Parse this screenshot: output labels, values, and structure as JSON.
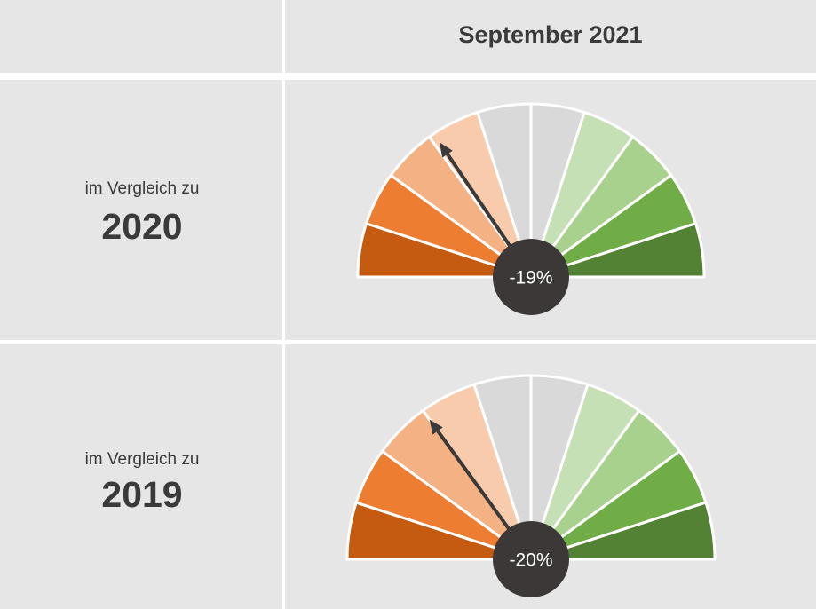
{
  "header": {
    "title": "September 2021"
  },
  "gauge": {
    "range": [
      -50,
      50
    ],
    "segment_colors": [
      "#c55a11",
      "#ed7d31",
      "#f4b183",
      "#f8cbad",
      "#d9d9d9",
      "#d9d9d9",
      "#c5e0b4",
      "#a9d18e",
      "#70ad47",
      "#548235"
    ],
    "needle_color": "#3a3a3a"
  },
  "rows": [
    {
      "label": "im Vergleich zu",
      "year": "2020",
      "value": -19,
      "value_label": "-19%"
    },
    {
      "label": "im Vergleich zu",
      "year": "2019",
      "value": -20,
      "value_label": "-20%"
    }
  ]
}
